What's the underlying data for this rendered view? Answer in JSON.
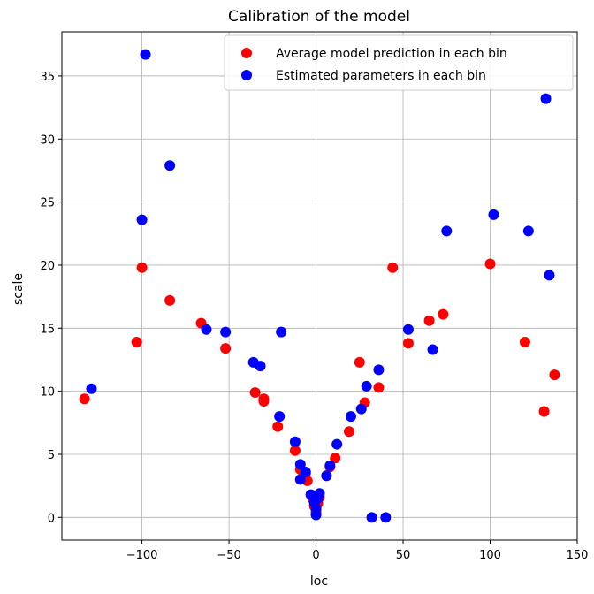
{
  "chart_data": {
    "type": "scatter",
    "title": "Calibration of the model",
    "xlabel": "loc",
    "ylabel": "scale",
    "xlim": [
      -146,
      150
    ],
    "ylim": [
      -1.8,
      38.5
    ],
    "xticks": [
      -100,
      -50,
      0,
      50,
      100,
      150
    ],
    "yticks": [
      0,
      5,
      10,
      15,
      20,
      25,
      30,
      35
    ],
    "grid": true,
    "legend_position": "top-right",
    "series": [
      {
        "name": "Average model prediction in each bin",
        "color": "#ff0000",
        "points": [
          [
            -133,
            9.4
          ],
          [
            -103,
            13.9
          ],
          [
            -100,
            19.8
          ],
          [
            -84,
            17.2
          ],
          [
            -66,
            15.4
          ],
          [
            -52,
            13.4
          ],
          [
            -35,
            9.9
          ],
          [
            -30,
            9.4
          ],
          [
            -30,
            9.2
          ],
          [
            -22,
            7.2
          ],
          [
            -12,
            5.3
          ],
          [
            -9,
            3.8
          ],
          [
            -6,
            3.5
          ],
          [
            -5,
            2.9
          ],
          [
            -2,
            1.5
          ],
          [
            -1,
            0.9
          ],
          [
            0,
            0.3
          ],
          [
            0,
            0.5
          ],
          [
            1,
            1.1
          ],
          [
            2,
            1.6
          ],
          [
            6,
            3.3
          ],
          [
            8,
            4.0
          ],
          [
            11,
            4.7
          ],
          [
            19,
            6.8
          ],
          [
            25,
            12.3
          ],
          [
            28,
            9.1
          ],
          [
            36,
            10.3
          ],
          [
            44,
            19.8
          ],
          [
            53,
            13.8
          ],
          [
            65,
            15.6
          ],
          [
            73,
            16.1
          ],
          [
            100,
            20.1
          ],
          [
            120,
            13.9
          ],
          [
            131,
            8.4
          ],
          [
            137,
            11.3
          ]
        ]
      },
      {
        "name": "Estimated parameters in each bin",
        "color": "#0000ff",
        "points": [
          [
            -129,
            10.2
          ],
          [
            -98,
            36.7
          ],
          [
            -100,
            23.6
          ],
          [
            -84,
            27.9
          ],
          [
            -63,
            14.9
          ],
          [
            -52,
            14.7
          ],
          [
            -36,
            12.3
          ],
          [
            -32,
            12.0
          ],
          [
            -21,
            8.0
          ],
          [
            -20,
            14.7
          ],
          [
            -12,
            6.0
          ],
          [
            -9,
            4.2
          ],
          [
            -9,
            3.0
          ],
          [
            -6,
            3.6
          ],
          [
            -3,
            1.8
          ],
          [
            -1,
            1.2
          ],
          [
            0,
            0.2
          ],
          [
            0,
            0.7
          ],
          [
            1,
            1.5
          ],
          [
            2,
            1.9
          ],
          [
            6,
            3.3
          ],
          [
            8,
            4.1
          ],
          [
            12,
            5.8
          ],
          [
            20,
            8.0
          ],
          [
            26,
            8.6
          ],
          [
            29,
            10.4
          ],
          [
            32,
            0.0
          ],
          [
            36,
            11.7
          ],
          [
            40,
            0.0
          ],
          [
            53,
            14.9
          ],
          [
            67,
            13.3
          ],
          [
            75,
            22.7
          ],
          [
            102,
            24.0
          ],
          [
            122,
            22.7
          ],
          [
            132,
            33.2
          ],
          [
            134,
            19.2
          ]
        ]
      }
    ]
  }
}
